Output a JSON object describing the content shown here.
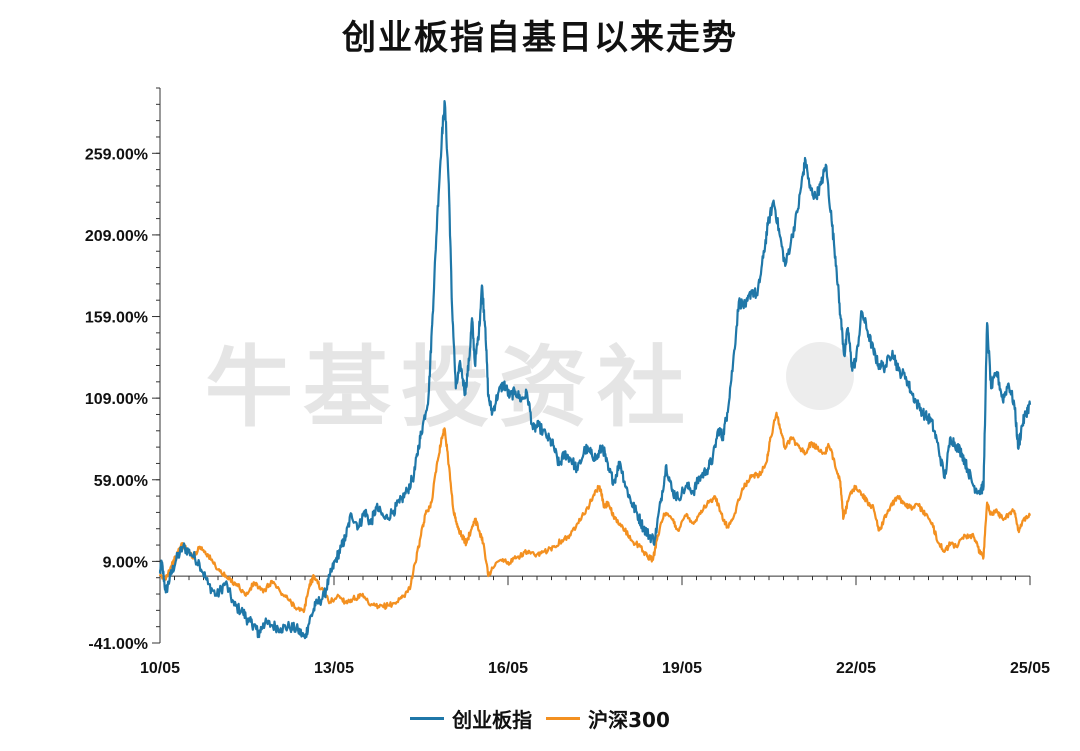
{
  "chart_data": {
    "type": "line",
    "title": "创业板指自基日以来走势",
    "xlabel": "",
    "ylabel": "",
    "x_tick_labels": [
      "10/05",
      "13/05",
      "16/05",
      "19/05",
      "22/05",
      "25/05"
    ],
    "x_range": [
      2010.42,
      2025.42
    ],
    "y_tick_labels": [
      "-41.00%",
      "9.00%",
      "59.00%",
      "109.00%",
      "159.00%",
      "209.00%",
      "259.00%"
    ],
    "y_ticks": [
      -41,
      9,
      59,
      109,
      159,
      209,
      259
    ],
    "ylim": [
      -41,
      299
    ],
    "grid": false,
    "legend_position": "bottom",
    "watermark": "牛基投资社",
    "series": [
      {
        "name": "创业板指",
        "color": "#1f77a8",
        "points": [
          [
            2010.42,
            2
          ],
          [
            2010.45,
            8
          ],
          [
            2010.52,
            -10
          ],
          [
            2010.6,
            0
          ],
          [
            2010.7,
            10
          ],
          [
            2010.82,
            18
          ],
          [
            2010.95,
            14
          ],
          [
            2011.1,
            8
          ],
          [
            2011.25,
            -5
          ],
          [
            2011.4,
            -12
          ],
          [
            2011.55,
            -4
          ],
          [
            2011.7,
            -18
          ],
          [
            2011.85,
            -22
          ],
          [
            2011.95,
            -28
          ],
          [
            2012.05,
            -30
          ],
          [
            2012.12,
            -36
          ],
          [
            2012.2,
            -29
          ],
          [
            2012.35,
            -30
          ],
          [
            2012.5,
            -32
          ],
          [
            2012.65,
            -31
          ],
          [
            2012.8,
            -33
          ],
          [
            2012.92,
            -38
          ],
          [
            2013.0,
            -27
          ],
          [
            2013.1,
            -18
          ],
          [
            2013.25,
            -12
          ],
          [
            2013.35,
            0
          ],
          [
            2013.45,
            10
          ],
          [
            2013.55,
            18
          ],
          [
            2013.62,
            24
          ],
          [
            2013.72,
            38
          ],
          [
            2013.85,
            30
          ],
          [
            2013.95,
            40
          ],
          [
            2014.05,
            32
          ],
          [
            2014.15,
            42
          ],
          [
            2014.3,
            35
          ],
          [
            2014.45,
            40
          ],
          [
            2014.55,
            45
          ],
          [
            2014.68,
            52
          ],
          [
            2014.8,
            62
          ],
          [
            2014.88,
            80
          ],
          [
            2014.95,
            92
          ],
          [
            2015.05,
            110
          ],
          [
            2015.12,
            160
          ],
          [
            2015.2,
            220
          ],
          [
            2015.28,
            270
          ],
          [
            2015.33,
            290
          ],
          [
            2015.4,
            240
          ],
          [
            2015.45,
            170
          ],
          [
            2015.52,
            115
          ],
          [
            2015.6,
            130
          ],
          [
            2015.68,
            112
          ],
          [
            2015.75,
            132
          ],
          [
            2015.8,
            158
          ],
          [
            2015.85,
            130
          ],
          [
            2015.92,
            150
          ],
          [
            2015.97,
            178
          ],
          [
            2016.03,
            152
          ],
          [
            2016.08,
            110
          ],
          [
            2016.15,
            100
          ],
          [
            2016.25,
            112
          ],
          [
            2016.35,
            118
          ],
          [
            2016.45,
            110
          ],
          [
            2016.55,
            113
          ],
          [
            2016.65,
            108
          ],
          [
            2016.75,
            112
          ],
          [
            2016.85,
            90
          ],
          [
            2016.95,
            92
          ],
          [
            2017.1,
            85
          ],
          [
            2017.2,
            80
          ],
          [
            2017.3,
            68
          ],
          [
            2017.4,
            75
          ],
          [
            2017.5,
            72
          ],
          [
            2017.62,
            65
          ],
          [
            2017.75,
            78
          ],
          [
            2017.85,
            75
          ],
          [
            2017.95,
            72
          ],
          [
            2018.05,
            80
          ],
          [
            2018.15,
            65
          ],
          [
            2018.25,
            58
          ],
          [
            2018.35,
            70
          ],
          [
            2018.45,
            55
          ],
          [
            2018.55,
            45
          ],
          [
            2018.65,
            38
          ],
          [
            2018.75,
            30
          ],
          [
            2018.85,
            25
          ],
          [
            2018.95,
            22
          ],
          [
            2019.05,
            45
          ],
          [
            2019.15,
            68
          ],
          [
            2019.25,
            52
          ],
          [
            2019.35,
            48
          ],
          [
            2019.5,
            55
          ],
          [
            2019.62,
            52
          ],
          [
            2019.72,
            60
          ],
          [
            2019.85,
            65
          ],
          [
            2019.95,
            72
          ],
          [
            2020.05,
            90
          ],
          [
            2020.12,
            85
          ],
          [
            2020.2,
            100
          ],
          [
            2020.3,
            130
          ],
          [
            2020.4,
            168
          ],
          [
            2020.52,
            165
          ],
          [
            2020.62,
            175
          ],
          [
            2020.72,
            172
          ],
          [
            2020.82,
            195
          ],
          [
            2020.9,
            215
          ],
          [
            2021.0,
            230
          ],
          [
            2021.1,
            210
          ],
          [
            2021.2,
            190
          ],
          [
            2021.3,
            205
          ],
          [
            2021.42,
            225
          ],
          [
            2021.5,
            245
          ],
          [
            2021.55,
            255
          ],
          [
            2021.62,
            238
          ],
          [
            2021.72,
            232
          ],
          [
            2021.82,
            240
          ],
          [
            2021.9,
            252
          ],
          [
            2022.0,
            218
          ],
          [
            2022.08,
            190
          ],
          [
            2022.15,
            160
          ],
          [
            2022.22,
            135
          ],
          [
            2022.28,
            152
          ],
          [
            2022.35,
            128
          ],
          [
            2022.42,
            132
          ],
          [
            2022.52,
            162
          ],
          [
            2022.62,
            150
          ],
          [
            2022.72,
            138
          ],
          [
            2022.8,
            130
          ],
          [
            2022.92,
            128
          ],
          [
            2023.05,
            138
          ],
          [
            2023.15,
            126
          ],
          [
            2023.28,
            122
          ],
          [
            2023.38,
            112
          ],
          [
            2023.5,
            104
          ],
          [
            2023.62,
            98
          ],
          [
            2023.72,
            95
          ],
          [
            2023.82,
            82
          ],
          [
            2023.95,
            60
          ],
          [
            2024.05,
            85
          ],
          [
            2024.15,
            80
          ],
          [
            2024.25,
            75
          ],
          [
            2024.35,
            65
          ],
          [
            2024.45,
            55
          ],
          [
            2024.55,
            52
          ],
          [
            2024.62,
            55
          ],
          [
            2024.68,
            155
          ],
          [
            2024.75,
            115
          ],
          [
            2024.85,
            125
          ],
          [
            2024.95,
            108
          ],
          [
            2025.05,
            118
          ],
          [
            2025.15,
            105
          ],
          [
            2025.22,
            78
          ],
          [
            2025.28,
            92
          ],
          [
            2025.35,
            100
          ],
          [
            2025.42,
            105
          ]
        ]
      },
      {
        "name": "沪深300",
        "color": "#f39020",
        "points": [
          [
            2010.42,
            0
          ],
          [
            2010.5,
            -2
          ],
          [
            2010.6,
            5
          ],
          [
            2010.7,
            12
          ],
          [
            2010.8,
            20
          ],
          [
            2010.9,
            15
          ],
          [
            2011.0,
            12
          ],
          [
            2011.1,
            18
          ],
          [
            2011.2,
            15
          ],
          [
            2011.3,
            10
          ],
          [
            2011.45,
            3
          ],
          [
            2011.6,
            -2
          ],
          [
            2011.75,
            -5
          ],
          [
            2011.9,
            -12
          ],
          [
            2012.05,
            -4
          ],
          [
            2012.2,
            -10
          ],
          [
            2012.35,
            -3
          ],
          [
            2012.5,
            -10
          ],
          [
            2012.65,
            -15
          ],
          [
            2012.8,
            -20
          ],
          [
            2012.9,
            -22
          ],
          [
            2013.0,
            -5
          ],
          [
            2013.08,
            0
          ],
          [
            2013.2,
            -8
          ],
          [
            2013.35,
            -16
          ],
          [
            2013.5,
            -12
          ],
          [
            2013.62,
            -16
          ],
          [
            2013.75,
            -14
          ],
          [
            2013.9,
            -12
          ],
          [
            2014.05,
            -18
          ],
          [
            2014.2,
            -19
          ],
          [
            2014.35,
            -18
          ],
          [
            2014.5,
            -16
          ],
          [
            2014.62,
            -12
          ],
          [
            2014.72,
            -8
          ],
          [
            2014.82,
            8
          ],
          [
            2014.92,
            25
          ],
          [
            2015.0,
            38
          ],
          [
            2015.1,
            45
          ],
          [
            2015.2,
            70
          ],
          [
            2015.28,
            85
          ],
          [
            2015.33,
            90
          ],
          [
            2015.4,
            68
          ],
          [
            2015.48,
            40
          ],
          [
            2015.55,
            30
          ],
          [
            2015.62,
            25
          ],
          [
            2015.7,
            20
          ],
          [
            2015.78,
            28
          ],
          [
            2015.85,
            35
          ],
          [
            2015.92,
            28
          ],
          [
            2016.0,
            20
          ],
          [
            2016.08,
            0
          ],
          [
            2016.15,
            5
          ],
          [
            2016.3,
            10
          ],
          [
            2016.45,
            8
          ],
          [
            2016.6,
            12
          ],
          [
            2016.75,
            15
          ],
          [
            2016.9,
            12
          ],
          [
            2017.05,
            15
          ],
          [
            2017.2,
            18
          ],
          [
            2017.35,
            22
          ],
          [
            2017.5,
            25
          ],
          [
            2017.65,
            35
          ],
          [
            2017.8,
            42
          ],
          [
            2017.9,
            50
          ],
          [
            2018.0,
            55
          ],
          [
            2018.08,
            42
          ],
          [
            2018.15,
            45
          ],
          [
            2018.25,
            35
          ],
          [
            2018.4,
            30
          ],
          [
            2018.55,
            22
          ],
          [
            2018.7,
            18
          ],
          [
            2018.82,
            12
          ],
          [
            2018.92,
            10
          ],
          [
            2019.0,
            25
          ],
          [
            2019.12,
            38
          ],
          [
            2019.25,
            35
          ],
          [
            2019.35,
            28
          ],
          [
            2019.5,
            38
          ],
          [
            2019.62,
            32
          ],
          [
            2019.75,
            40
          ],
          [
            2019.88,
            45
          ],
          [
            2020.0,
            48
          ],
          [
            2020.1,
            38
          ],
          [
            2020.2,
            30
          ],
          [
            2020.3,
            35
          ],
          [
            2020.45,
            52
          ],
          [
            2020.55,
            58
          ],
          [
            2020.65,
            62
          ],
          [
            2020.75,
            62
          ],
          [
            2020.88,
            70
          ],
          [
            2020.95,
            85
          ],
          [
            2021.05,
            100
          ],
          [
            2021.12,
            90
          ],
          [
            2021.2,
            78
          ],
          [
            2021.3,
            85
          ],
          [
            2021.42,
            80
          ],
          [
            2021.55,
            75
          ],
          [
            2021.65,
            82
          ],
          [
            2021.75,
            78
          ],
          [
            2021.88,
            75
          ],
          [
            2021.95,
            80
          ],
          [
            2022.05,
            70
          ],
          [
            2022.15,
            58
          ],
          [
            2022.2,
            35
          ],
          [
            2022.3,
            48
          ],
          [
            2022.42,
            55
          ],
          [
            2022.52,
            50
          ],
          [
            2022.62,
            45
          ],
          [
            2022.72,
            42
          ],
          [
            2022.82,
            28
          ],
          [
            2022.95,
            38
          ],
          [
            2023.05,
            45
          ],
          [
            2023.15,
            48
          ],
          [
            2023.25,
            45
          ],
          [
            2023.35,
            42
          ],
          [
            2023.5,
            43
          ],
          [
            2023.62,
            38
          ],
          [
            2023.75,
            30
          ],
          [
            2023.85,
            20
          ],
          [
            2023.95,
            15
          ],
          [
            2024.05,
            20
          ],
          [
            2024.15,
            18
          ],
          [
            2024.3,
            25
          ],
          [
            2024.45,
            24
          ],
          [
            2024.55,
            15
          ],
          [
            2024.62,
            12
          ],
          [
            2024.68,
            45
          ],
          [
            2024.75,
            38
          ],
          [
            2024.85,
            40
          ],
          [
            2024.95,
            35
          ],
          [
            2025.05,
            38
          ],
          [
            2025.15,
            40
          ],
          [
            2025.22,
            28
          ],
          [
            2025.3,
            34
          ],
          [
            2025.42,
            37
          ]
        ]
      }
    ]
  }
}
